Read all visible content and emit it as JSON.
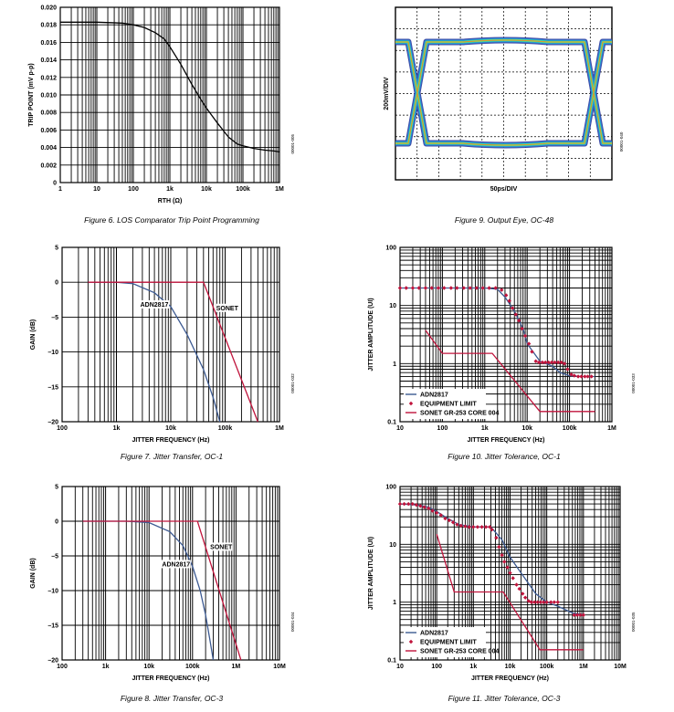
{
  "chart_data": [
    {
      "type": "line",
      "caption": "Figure 6. LOS Comparator Trip Point Programming",
      "doc_id": "00001-005",
      "xlabel": "RTH (Ω)",
      "ylabel": "TRIP POINT (mV p-p)",
      "xscale": "log",
      "xlim": [
        1,
        1000000
      ],
      "ylim": [
        0,
        0.02
      ],
      "x_ticks": [
        "1",
        "10",
        "100",
        "1k",
        "10k",
        "100k",
        "1M"
      ],
      "y_ticks": [
        "0",
        "0.002",
        "0.004",
        "0.006",
        "0.008",
        "0.010",
        "0.012",
        "0.014",
        "0.016",
        "0.018",
        "0.020"
      ],
      "series": [
        {
          "color": "#000000",
          "x": [
            1,
            10,
            50,
            100,
            200,
            400,
            700,
            1000,
            2000,
            4000,
            7000,
            10000,
            20000,
            40000,
            70000,
            100000,
            200000,
            400000,
            700000,
            1000000
          ],
          "y": [
            0.0183,
            0.0183,
            0.0182,
            0.018,
            0.0177,
            0.0171,
            0.0164,
            0.0155,
            0.0135,
            0.0112,
            0.0095,
            0.0085,
            0.0068,
            0.0052,
            0.0044,
            0.0042,
            0.0039,
            0.0037,
            0.0036,
            0.0035
          ]
        }
      ]
    },
    {
      "type": "image",
      "caption": "Figure 9. Output Eye, OC-48",
      "doc_id": "00001-040",
      "xlabel": "50ps/DIV",
      "ylabel": "200mV/DIV"
    },
    {
      "type": "line",
      "caption": "Figure 7. Jitter Transfer, OC-1",
      "doc_id": "00001-032",
      "xlabel": "JITTER FREQUENCY (Hz)",
      "ylabel": "GAIN (dB)",
      "xscale": "log",
      "xlim": [
        100,
        1000000
      ],
      "ylim": [
        -20,
        5
      ],
      "x_ticks": [
        "100",
        "1k",
        "10k",
        "100k",
        "1M"
      ],
      "y_ticks": [
        "5",
        "0",
        "–5",
        "–10",
        "–15",
        "–20"
      ],
      "annotations": [
        "ADN2817",
        "SONET"
      ],
      "series": [
        {
          "name": "ADN2817",
          "color": "#3c5a92",
          "x": [
            300,
            1000,
            2000,
            5000,
            10000,
            20000,
            40000,
            60000,
            80000
          ],
          "y": [
            0,
            0,
            -0.2,
            -1.5,
            -3.5,
            -7.5,
            -12.5,
            -16.5,
            -20
          ]
        },
        {
          "name": "SONET",
          "color": "#c0143c",
          "x": [
            300,
            40000,
            400000
          ],
          "y": [
            0,
            0,
            -20
          ]
        }
      ]
    },
    {
      "type": "line",
      "caption": "Figure 10. Jitter Tolerance, OC-1",
      "doc_id": "00001-033",
      "xlabel": "JITTER FREQUENCY (Hz)",
      "ylabel": "JITTER AMPLITUDE (UI)",
      "xscale": "log",
      "xlim": [
        10,
        1000000
      ],
      "yscale": "log",
      "ylim": [
        0.1,
        100
      ],
      "x_ticks": [
        "10",
        "100",
        "1k",
        "10k",
        "100k",
        "1M"
      ],
      "y_ticks": [
        "100",
        "10",
        "1",
        "0.1"
      ],
      "legend": {
        "position": "bottom-left",
        "entries": [
          "ADN2817",
          "EQUIPMENT LIMIT",
          "SONET GR-253 CORE 004"
        ]
      },
      "series": [
        {
          "name": "ADN2817",
          "color": "#3c5a92",
          "style": "line",
          "x": [
            10,
            1000,
            2000,
            3000,
            5000,
            8000,
            10000,
            20000,
            40000,
            60000,
            100000,
            200000,
            400000
          ],
          "y": [
            20,
            20,
            19,
            14,
            8,
            4,
            2.2,
            1.1,
            0.9,
            0.7,
            0.62,
            0.6,
            0.6
          ]
        },
        {
          "name": "EQUIPMENT LIMIT",
          "color": "#c0143c",
          "style": "markers",
          "x": [
            10,
            14,
            20,
            28,
            40,
            56,
            80,
            110,
            160,
            220,
            320,
            450,
            640,
            900,
            1270,
            1800,
            2500,
            3200,
            3800,
            4500,
            5400,
            6400,
            7600,
            9000,
            11000,
            13000,
            16000,
            19000,
            23000,
            27000,
            32000,
            38000,
            45000,
            54000,
            64000,
            76000,
            90000,
            110000,
            130000,
            160000,
            190000,
            230000,
            270000,
            330000
          ],
          "y": [
            20,
            20,
            20,
            20,
            20,
            20,
            20,
            20,
            20,
            20,
            20,
            20,
            20,
            20,
            20,
            20,
            18.5,
            15,
            12,
            9,
            7,
            5.5,
            4,
            3,
            2.2,
            1.6,
            1.1,
            1.05,
            1.05,
            1.05,
            1.05,
            1.05,
            1.05,
            1.05,
            1.05,
            1.0,
            0.8,
            0.65,
            0.62,
            0.6,
            0.6,
            0.6,
            0.6,
            0.6
          ]
        },
        {
          "name": "SONET GR-253 CORE 004",
          "color": "#c0143c",
          "style": "line",
          "x": [
            40,
            100,
            1500,
            20000,
            400000
          ],
          "y": [
            3.75,
            1.5,
            1.5,
            0.15,
            0.15
          ]
        }
      ]
    },
    {
      "type": "line",
      "caption": "Figure 8. Jitter Transfer, OC-3",
      "doc_id": "00001-034",
      "xlabel": "JITTER FREQUENCY (Hz)",
      "ylabel": "GAIN (dB)",
      "xscale": "log",
      "xlim": [
        100,
        10000000
      ],
      "ylim": [
        -20,
        5
      ],
      "x_ticks": [
        "100",
        "1k",
        "10k",
        "100k",
        "1M",
        "10M"
      ],
      "y_ticks": [
        "5",
        "0",
        "–5",
        "–10",
        "–15",
        "–20"
      ],
      "annotations": [
        "ADN2817",
        "SONET"
      ],
      "series": [
        {
          "name": "ADN2817",
          "color": "#3c5a92",
          "x": [
            300,
            3000,
            10000,
            30000,
            60000,
            100000,
            150000,
            200000,
            250000,
            300000
          ],
          "y": [
            0,
            0,
            -0.2,
            -1.5,
            -3.5,
            -6.5,
            -10,
            -13.5,
            -17,
            -20
          ]
        },
        {
          "name": "SONET",
          "color": "#c0143c",
          "x": [
            300,
            130000,
            1300000
          ],
          "y": [
            0,
            0,
            -20
          ]
        }
      ]
    },
    {
      "type": "line",
      "caption": "Figure 11. Jitter Tolerance, OC-3",
      "doc_id": "00001-035",
      "xlabel": "JITTER FREQUENCY (Hz)",
      "ylabel": "JITTER AMPLITUDE (UI)",
      "xscale": "log",
      "xlim": [
        10,
        10000000
      ],
      "yscale": "log",
      "ylim": [
        0.1,
        100
      ],
      "x_ticks": [
        "10",
        "100",
        "1k",
        "10k",
        "100k",
        "1M",
        "10M"
      ],
      "y_ticks": [
        "100",
        "10",
        "1",
        "0.1"
      ],
      "legend": {
        "position": "bottom-left",
        "entries": [
          "ADN2817",
          "EQUIPMENT LIMIT",
          "SONET GR-253 CORE 004"
        ]
      },
      "series": [
        {
          "name": "ADN2817",
          "color": "#3c5a92",
          "style": "line",
          "x": [
            10,
            30,
            60,
            100,
            200,
            400,
            1000,
            3000,
            6000,
            10000,
            20000,
            50000,
            100000,
            200000,
            500000,
            1000000
          ],
          "y": [
            50,
            48,
            44,
            37,
            28,
            22,
            20,
            20,
            12,
            6,
            3.2,
            1.4,
            1.0,
            0.85,
            0.65,
            0.6
          ]
        },
        {
          "name": "EQUIPMENT LIMIT",
          "color": "#c0143c",
          "style": "markers",
          "x": [
            10,
            13,
            17,
            22,
            28,
            36,
            46,
            60,
            77,
            100,
            130,
            170,
            220,
            280,
            360,
            460,
            600,
            770,
            1000,
            1300,
            1700,
            2200,
            2800,
            3200,
            4200,
            5000,
            6000,
            7000,
            8500,
            10000,
            12000,
            15000,
            18000,
            22000,
            26000,
            32000,
            38000,
            46000,
            56000,
            68000,
            82000,
            100000,
            130000,
            160000,
            200000,
            560000,
            680000,
            820000,
            1000000
          ],
          "y": [
            50,
            50,
            50,
            50,
            48,
            46,
            44,
            42,
            38,
            35,
            32,
            28,
            26,
            24,
            22,
            21,
            20.5,
            20,
            20,
            20,
            20,
            20,
            20,
            18,
            13,
            9,
            6.5,
            5,
            4,
            3.2,
            2.6,
            2,
            1.7,
            1.4,
            1.2,
            1.05,
            1.0,
            1.0,
            1.0,
            1.0,
            1.0,
            1.0,
            1.0,
            1.0,
            1.0,
            0.6,
            0.6,
            0.6,
            0.6
          ]
        },
        {
          "name": "SONET GR-253 CORE 004",
          "color": "#c0143c",
          "style": "line",
          "x": [
            100,
            300,
            6500,
            65000,
            1000000
          ],
          "y": [
            15,
            1.5,
            1.5,
            0.15,
            0.15
          ]
        }
      ]
    }
  ]
}
